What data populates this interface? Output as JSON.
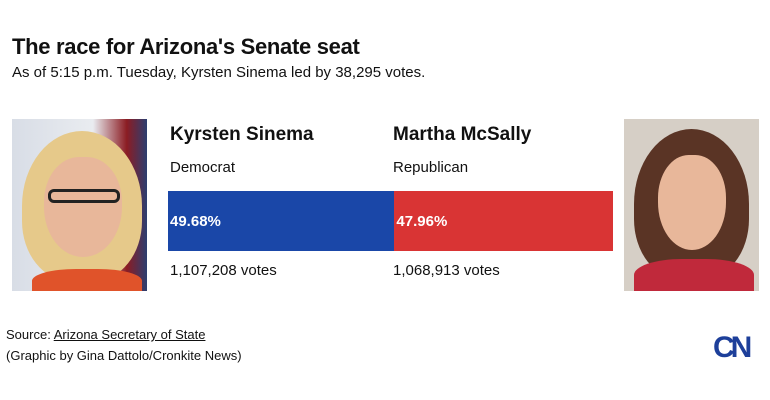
{
  "header": {
    "title": "The race for Arizona's Senate seat",
    "subtitle": "As of 5:15 p.m. Tuesday, Kyrsten Sinema led by 38,295 votes."
  },
  "chart_data": {
    "type": "bar",
    "title": "The race for Arizona's Senate seat",
    "categories": [
      "Kyrsten Sinema",
      "Martha McSally"
    ],
    "series": [
      {
        "name": "Vote share (%)",
        "values": [
          49.68,
          47.96
        ]
      }
    ],
    "candidates": [
      {
        "name": "Kyrsten Sinema",
        "party": "Democrat",
        "percent": 49.68,
        "percent_label": "49.68%",
        "votes_label": "1,107,208 votes",
        "color": "#1a47a8"
      },
      {
        "name": "Martha McSally",
        "party": "Republican",
        "percent": 47.96,
        "percent_label": "47.96%",
        "votes_label": "1,068,913 votes",
        "color": "#d93434"
      }
    ]
  },
  "footer": {
    "source_prefix": "Source: ",
    "source_link": "Arizona Secretary of State",
    "credit": "(Graphic by Gina Dattolo/Cronkite News)",
    "logo": "CN"
  }
}
